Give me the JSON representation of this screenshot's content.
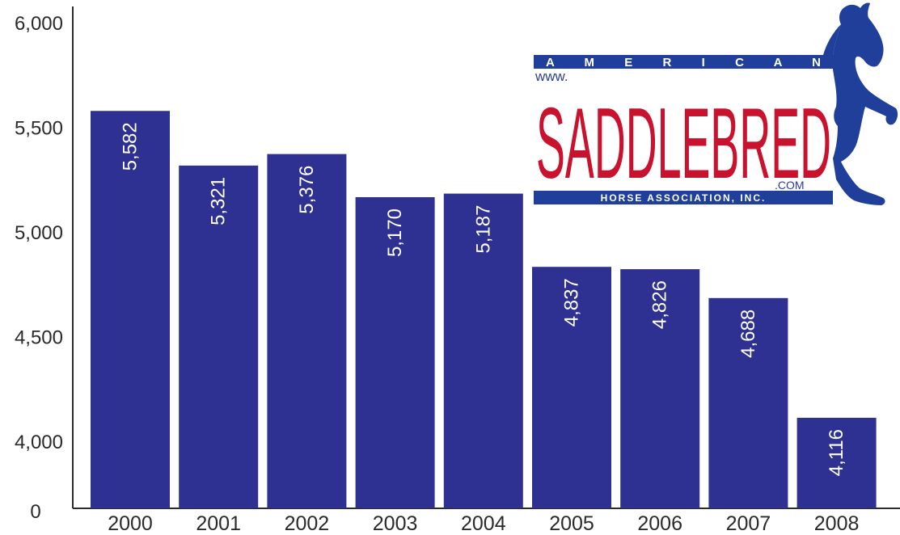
{
  "chart_data": {
    "type": "bar",
    "categories": [
      "2000",
      "2001",
      "2002",
      "2003",
      "2004",
      "2005",
      "2006",
      "2007",
      "2008"
    ],
    "values": [
      5582,
      5321,
      5376,
      5170,
      5187,
      4837,
      4826,
      4688,
      4116
    ],
    "data_labels": [
      "5,582",
      "5,321",
      "5,376",
      "5,170",
      "5,187",
      "4,837",
      "4,826",
      "4,688",
      "4,116"
    ],
    "ylim": [
      3700,
      6000
    ],
    "y_ticks": [
      {
        "value": 6000,
        "label": "6,000"
      },
      {
        "value": 5500,
        "label": "5,500"
      },
      {
        "value": 5000,
        "label": "5,000"
      },
      {
        "value": 4500,
        "label": "4,500"
      },
      {
        "value": 4000,
        "label": "4,000"
      }
    ],
    "y_axis_break_label": "0",
    "bar_color": "#2e3192",
    "grid": false,
    "legend": "none"
  },
  "logo": {
    "top_text": "A M E R I C A N",
    "www_text": "www.",
    "main_text": "SADDLEBRED",
    "com_text": ".COM",
    "bottom_text": "HORSE ASSOCIATION, INC.",
    "band_color": "#1f3f9a",
    "main_color": "#c8122e",
    "horse_color": "#1f3f9a",
    "icon": "horse-icon"
  }
}
